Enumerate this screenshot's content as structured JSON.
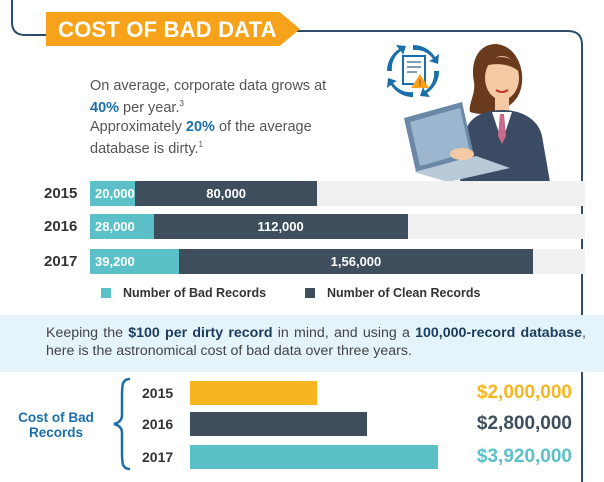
{
  "header": {
    "title": "COST OF BAD DATA"
  },
  "intro": {
    "line1_pre": "On average, corporate data grows at ",
    "line1_bold": "40%",
    "line1_post": " per year.",
    "line1_sup": "3",
    "line2_pre": "Approximately ",
    "line2_bold": "20%",
    "line2_post": " of the average database is dirty.",
    "line2_sup": "1"
  },
  "records_chart": {
    "type": "bar",
    "rows": [
      {
        "year": "2015",
        "bad": 20000,
        "clean": 80000,
        "bad_label": "20,000",
        "clean_label": "80,000"
      },
      {
        "year": "2016",
        "bad": 28000,
        "clean": 112000,
        "bad_label": "28,000",
        "clean_label": "112,000"
      },
      {
        "year": "2017",
        "bad": 39200,
        "clean": 156000,
        "bad_label": "39,200",
        "clean_label": "1,56,000"
      }
    ],
    "legend": {
      "bad": "Number of Bad Records",
      "clean": "Number of Clean Records"
    },
    "colors": {
      "bad": "#5bc0c8",
      "clean": "#3f4e5d"
    }
  },
  "band": {
    "t1": "Keeping the ",
    "b1": "$100 per dirty record",
    "t2": " in mind, and using a ",
    "b2": "100,000-record database",
    "t3": ", here is the astronomical cost of bad data over three years."
  },
  "cost_chart": {
    "label": "Cost of Bad Records",
    "rows": [
      {
        "year": "2015",
        "value": 2000000,
        "label": "$2,000,000",
        "color": "#f7b520",
        "text_color": "#f7b520"
      },
      {
        "year": "2016",
        "value": 2800000,
        "label": "$2,800,000",
        "color": "#3f4e5d",
        "text_color": "#3f4e5d"
      },
      {
        "year": "2017",
        "value": 3920000,
        "label": "$3,920,000",
        "color": "#5bc0c8",
        "text_color": "#5bc0c8"
      }
    ]
  }
}
